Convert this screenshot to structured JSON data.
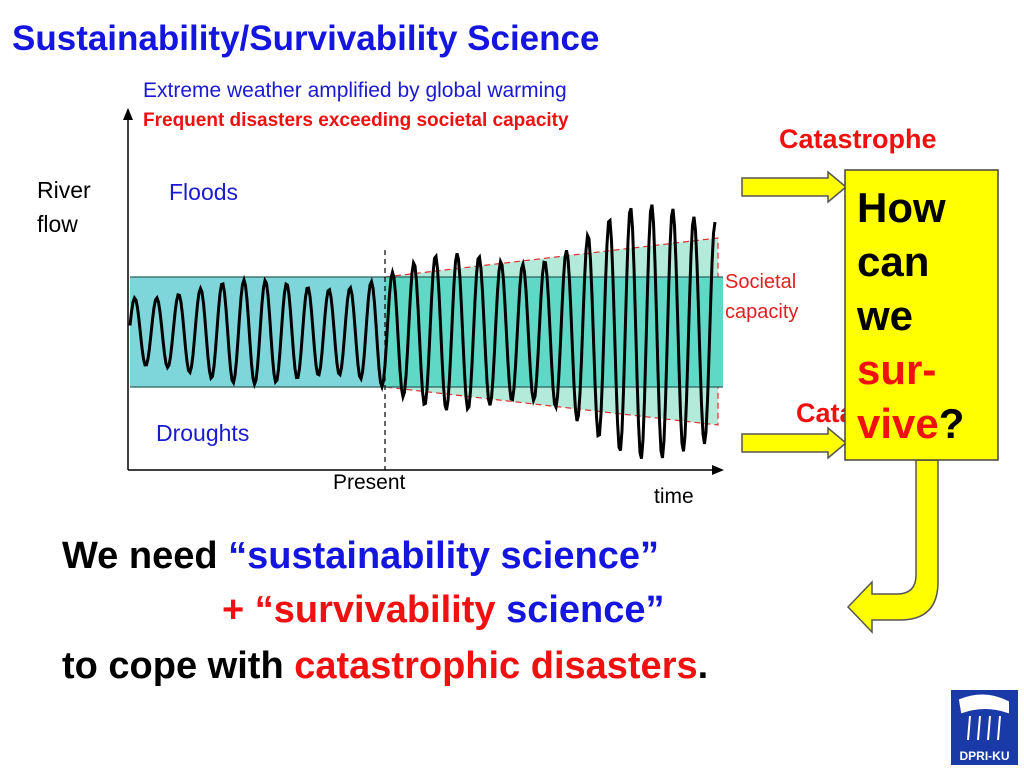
{
  "title": "Sustainability/Survivability Science",
  "diagram": {
    "subtitle": "Extreme weather amplified by global warming",
    "warning": "Frequent disasters exceeding societal capacity",
    "y_axis_label": [
      "River",
      "flow"
    ],
    "x_axis_label": "time",
    "present_label": "Present",
    "floods_label": "Floods",
    "droughts_label": "Droughts",
    "capacity_label": [
      "Societal",
      "capacity"
    ],
    "upper_outcome": "Catastrophe",
    "lower_outcome": "Catastrophe"
  },
  "callout": {
    "lines": [
      "How",
      "can",
      "we",
      "sur-",
      "vive"
    ],
    "punctuation": "?"
  },
  "message": {
    "line1": [
      "We need ",
      "“sustainability science”"
    ],
    "line2": [
      "+ “",
      "survivability",
      " science”"
    ],
    "line3": [
      "to cope with ",
      "catastrophic disasters",
      "."
    ]
  },
  "logo": "DPRI-KU"
}
